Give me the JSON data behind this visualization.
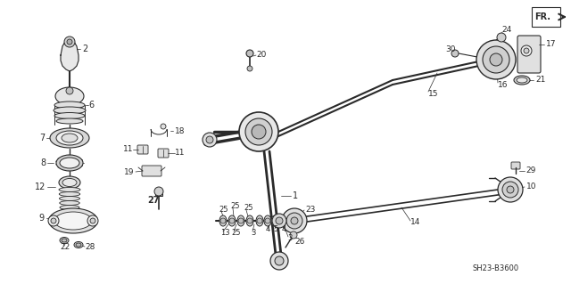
{
  "bg_color": "#ffffff",
  "line_color": "#2a2a2a",
  "diagram_code": "SH23-B3600",
  "fig_w": 6.4,
  "fig_h": 3.19,
  "dpi": 100
}
